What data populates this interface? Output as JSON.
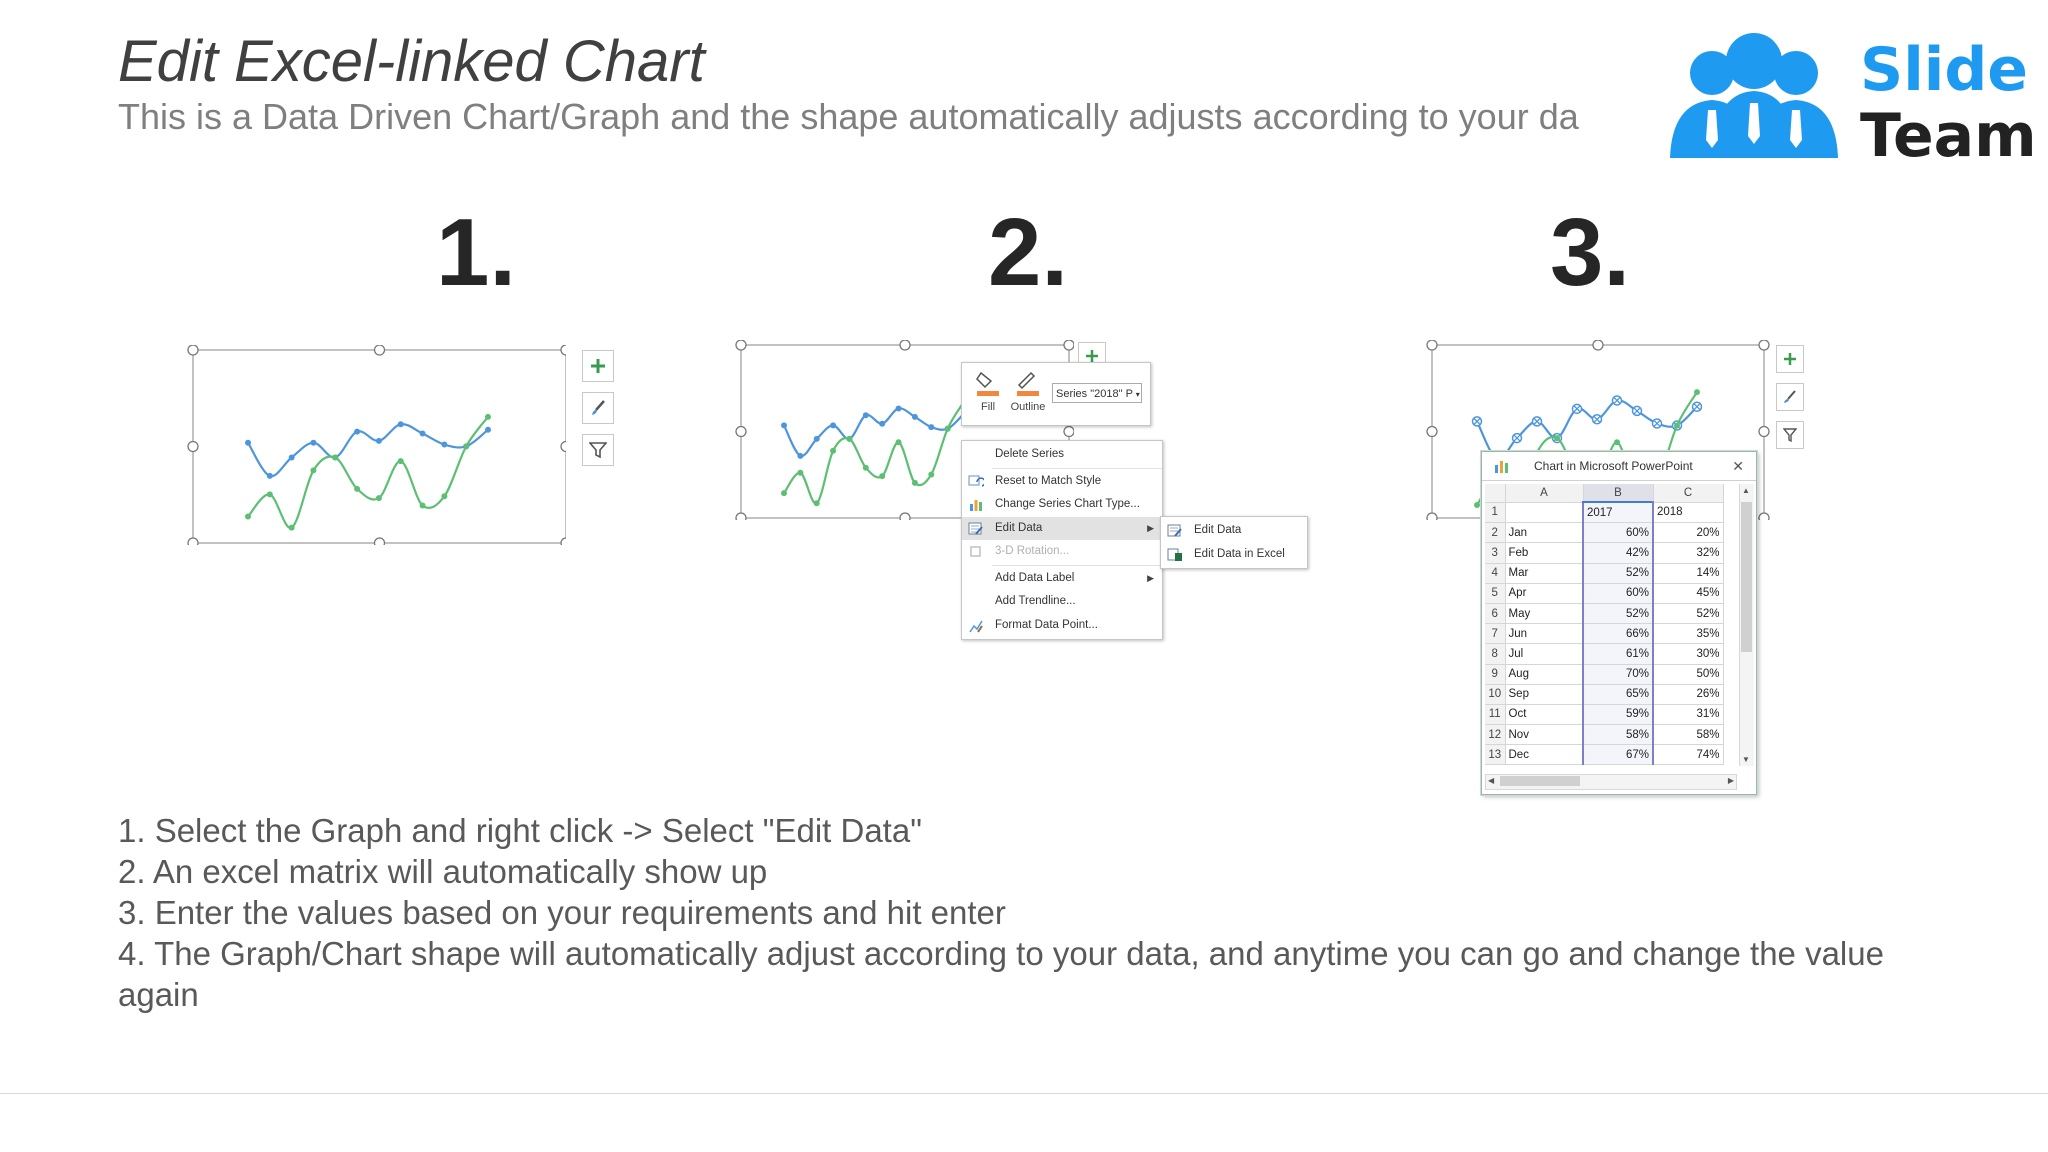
{
  "slide": {
    "title": "Edit Excel-linked Chart",
    "subtitle": "This is a Data Driven Chart/Graph and the shape automatically adjusts according to your da"
  },
  "logo": {
    "line1": "Slide",
    "line2": "Team",
    "accent": "#1e9af0"
  },
  "steps": {
    "one": "1.",
    "two": "2.",
    "three": "3."
  },
  "colors": {
    "series_2017": "#4e96dc",
    "series_2018": "#5cbf73",
    "text": "#595959"
  },
  "chart_data": {
    "type": "line",
    "categories": [
      "Jan",
      "Feb",
      "Mar",
      "Apr",
      "May",
      "Jun",
      "Jul",
      "Aug",
      "Sep",
      "Oct",
      "Nov",
      "Dec"
    ],
    "series": [
      {
        "name": "2017",
        "values": [
          60,
          42,
          52,
          60,
          52,
          66,
          61,
          70,
          65,
          59,
          58,
          67
        ]
      },
      {
        "name": "2018",
        "values": [
          20,
          32,
          14,
          45,
          52,
          35,
          30,
          50,
          26,
          31,
          58,
          74
        ]
      }
    ],
    "ylim": [
      0,
      100
    ],
    "grid": false
  },
  "context_menu": {
    "mini_toolbar": {
      "fill": "Fill",
      "outline": "Outline",
      "series_select": "Series \"2018\" P"
    },
    "items": [
      {
        "label": "Delete Series",
        "icon": "none",
        "disabled": false
      },
      {
        "label": "Reset to Match Style",
        "icon": "reset-style-icon",
        "disabled": false
      },
      {
        "label": "Change Series Chart Type...",
        "icon": "chart-type-icon",
        "disabled": false
      },
      {
        "label": "Edit Data",
        "icon": "edit-data-icon",
        "disabled": false,
        "submenu": true
      },
      {
        "label": "3-D Rotation...",
        "icon": "rotation-icon",
        "disabled": true
      },
      {
        "label": "Add Data Label",
        "icon": "none",
        "disabled": false,
        "submenu": true
      },
      {
        "label": "Add Trendline...",
        "icon": "none",
        "disabled": false
      },
      {
        "label": "Format Data Point...",
        "icon": "format-icon",
        "disabled": false
      }
    ],
    "submenu": [
      "Edit Data",
      "Edit Data in Excel"
    ]
  },
  "sheet": {
    "title": "Chart in Microsoft PowerPoint",
    "columns": [
      "A",
      "B",
      "C"
    ],
    "header_row": [
      "",
      "2017",
      "2018"
    ],
    "rows": [
      [
        "Jan",
        "60%",
        "20%"
      ],
      [
        "Feb",
        "42%",
        "32%"
      ],
      [
        "Mar",
        "52%",
        "14%"
      ],
      [
        "Apr",
        "60%",
        "45%"
      ],
      [
        "May",
        "52%",
        "52%"
      ],
      [
        "Jun",
        "66%",
        "35%"
      ],
      [
        "Jul",
        "61%",
        "30%"
      ],
      [
        "Aug",
        "70%",
        "50%"
      ],
      [
        "Sep",
        "65%",
        "26%"
      ],
      [
        "Oct",
        "59%",
        "31%"
      ],
      [
        "Nov",
        "58%",
        "58%"
      ],
      [
        "Dec",
        "67%",
        "74%"
      ]
    ]
  },
  "instructions": [
    "1. Select the Graph and right click -> Select \"Edit Data\"",
    "2. An excel matrix will automatically show up",
    "3. Enter the values based on your requirements and hit enter",
    "4. The Graph/Chart shape will automatically adjust according to your data, and anytime you can go and change the value",
    "again"
  ]
}
